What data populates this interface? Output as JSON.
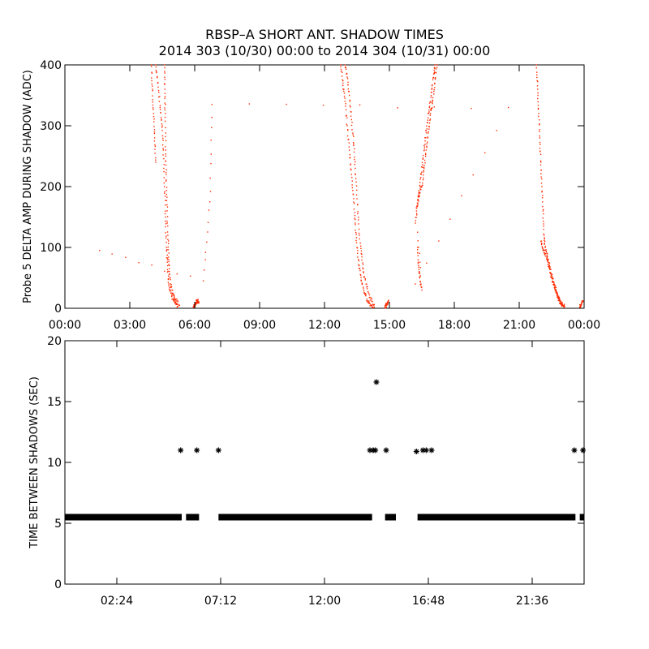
{
  "header": {
    "title_line1": "RBSP–A SHORT ANT. SHADOW TIMES",
    "title_line2": "2014 303 (10/30) 00:00 to 2014 304 (10/31) 00:00"
  },
  "chart_data": [
    {
      "type": "scatter",
      "ylabel": "Probe 5 DELTA AMP DURING SHADOW (ADC)",
      "xlabel": "",
      "x_unit": "hours",
      "xlim": [
        0,
        24
      ],
      "ylim": [
        0,
        400
      ],
      "x_ticks": [
        0,
        3,
        6,
        9,
        12,
        15,
        18,
        21,
        24
      ],
      "x_tick_labels": [
        "00:00",
        "03:00",
        "06:00",
        "09:00",
        "12:00",
        "15:00",
        "18:00",
        "21:00",
        "00:00"
      ],
      "y_ticks": [
        0,
        100,
        200,
        300,
        400
      ],
      "y_tick_labels": [
        "0",
        "100",
        "200",
        "300",
        "400"
      ],
      "color": "#ff2a00",
      "grid": false,
      "series": [
        {
          "points": [
            [
              4.2,
              400
            ],
            [
              4.3,
              370
            ],
            [
              4.4,
              330
            ],
            [
              4.5,
              300
            ],
            [
              4.55,
              260
            ],
            [
              4.6,
              200
            ],
            [
              4.65,
              150
            ],
            [
              4.7,
              100
            ],
            [
              4.75,
              70
            ],
            [
              4.8,
              40
            ],
            [
              4.9,
              25
            ],
            [
              5.0,
              15
            ],
            [
              5.1,
              8
            ],
            [
              5.2,
              3
            ]
          ]
        },
        {
          "points": [
            [
              4.6,
              400
            ],
            [
              4.62,
              360
            ],
            [
              4.64,
              320
            ],
            [
              4.66,
              260
            ],
            [
              4.68,
              220
            ],
            [
              4.72,
              170
            ],
            [
              4.76,
              120
            ],
            [
              4.8,
              80
            ],
            [
              4.85,
              50
            ],
            [
              4.95,
              30
            ],
            [
              5.05,
              20
            ],
            [
              5.15,
              12
            ],
            [
              5.3,
              5
            ]
          ]
        },
        {
          "points": [
            [
              4.0,
              400
            ],
            [
              4.05,
              360
            ],
            [
              4.1,
              320
            ],
            [
              4.15,
              280
            ],
            [
              4.2,
              240
            ]
          ]
        },
        {
          "points": [
            [
              5.95,
              2
            ],
            [
              6.0,
              5
            ],
            [
              6.05,
              8
            ],
            [
              6.1,
              11
            ],
            [
              6.15,
              12
            ],
            [
              6.2,
              10
            ]
          ]
        },
        {
          "points": [
            [
              1.6,
              95
            ],
            [
              6.4,
              45
            ],
            [
              6.7,
              175
            ],
            [
              6.8,
              335
            ],
            [
              20.5,
              330
            ],
            [
              16.2,
              40
            ]
          ]
        },
        {
          "points": [
            [
              12.75,
              400
            ],
            [
              12.85,
              370
            ],
            [
              12.95,
              340
            ],
            [
              13.05,
              300
            ],
            [
              13.15,
              260
            ],
            [
              13.25,
              220
            ],
            [
              13.35,
              180
            ],
            [
              13.42,
              140
            ],
            [
              13.5,
              100
            ],
            [
              13.6,
              70
            ],
            [
              13.7,
              45
            ],
            [
              13.85,
              25
            ],
            [
              14.0,
              12
            ],
            [
              14.15,
              5
            ],
            [
              14.3,
              2
            ]
          ]
        },
        {
          "points": [
            [
              12.95,
              400
            ],
            [
              13.05,
              380
            ],
            [
              13.15,
              350
            ],
            [
              13.25,
              310
            ],
            [
              13.35,
              270
            ],
            [
              13.42,
              230
            ],
            [
              13.5,
              180
            ],
            [
              13.6,
              130
            ],
            [
              13.7,
              90
            ],
            [
              13.8,
              60
            ],
            [
              13.95,
              35
            ],
            [
              14.1,
              18
            ],
            [
              14.3,
              6
            ]
          ]
        },
        {
          "points": [
            [
              14.8,
              2
            ],
            [
              14.85,
              5
            ],
            [
              14.9,
              8
            ],
            [
              14.95,
              12
            ]
          ]
        },
        {
          "points": [
            [
              16.2,
              140
            ],
            [
              16.3,
              170
            ],
            [
              16.4,
              190
            ],
            [
              16.5,
              200
            ],
            [
              16.6,
              230
            ],
            [
              16.7,
              260
            ],
            [
              16.8,
              290
            ],
            [
              16.9,
              320
            ],
            [
              17.0,
              340
            ],
            [
              17.1,
              370
            ],
            [
              17.2,
              400
            ]
          ]
        },
        {
          "points": [
            [
              16.25,
              160
            ],
            [
              16.35,
              185
            ],
            [
              16.45,
              215
            ],
            [
              16.55,
              245
            ],
            [
              16.65,
              275
            ],
            [
              16.75,
              305
            ],
            [
              16.85,
              330
            ],
            [
              16.95,
              355
            ],
            [
              17.05,
              385
            ],
            [
              17.1,
              400
            ]
          ]
        },
        {
          "points": [
            [
              16.3,
              100
            ],
            [
              16.35,
              70
            ],
            [
              16.4,
              50
            ],
            [
              16.5,
              30
            ],
            [
              16.3,
              125
            ]
          ]
        },
        {
          "points": [
            [
              21.8,
              400
            ],
            [
              21.85,
              360
            ],
            [
              21.9,
              320
            ],
            [
              21.95,
              280
            ],
            [
              22.0,
              240
            ],
            [
              22.05,
              200
            ],
            [
              22.1,
              160
            ],
            [
              22.15,
              120
            ],
            [
              22.2,
              100
            ],
            [
              22.3,
              85
            ],
            [
              22.4,
              70
            ],
            [
              22.5,
              55
            ],
            [
              22.6,
              42
            ],
            [
              22.7,
              30
            ],
            [
              22.8,
              20
            ],
            [
              22.9,
              12
            ],
            [
              23.0,
              6
            ],
            [
              23.1,
              3
            ]
          ]
        },
        {
          "points": [
            [
              22.0,
              110
            ],
            [
              22.1,
              95
            ],
            [
              22.2,
              90
            ],
            [
              22.3,
              78
            ],
            [
              22.4,
              65
            ],
            [
              22.5,
              50
            ],
            [
              22.6,
              38
            ],
            [
              22.7,
              26
            ],
            [
              22.8,
              18
            ],
            [
              22.9,
              9
            ],
            [
              23.0,
              4
            ]
          ]
        },
        {
          "points": [
            [
              23.8,
              2
            ],
            [
              23.85,
              5
            ],
            [
              23.9,
              9
            ],
            [
              23.95,
              12
            ]
          ]
        }
      ]
    },
    {
      "type": "scatter",
      "ylabel": "TIME BETWEEN SHADOWS (SEC)",
      "xlabel": "",
      "x_unit": "hours",
      "xlim": [
        0,
        24
      ],
      "ylim": [
        0,
        20
      ],
      "x_ticks": [
        2.4,
        7.2,
        12.0,
        16.8,
        21.6
      ],
      "x_tick_labels": [
        "02:24",
        "07:12",
        "12:00",
        "16:48",
        "21:36"
      ],
      "y_ticks": [
        0,
        5,
        10,
        15,
        20
      ],
      "y_tick_labels": [
        "0",
        "5",
        "10",
        "15",
        "20"
      ],
      "marker": "asterisk",
      "color": "#000000",
      "grid": false,
      "baseline": {
        "value": 5.5,
        "segments": [
          [
            0,
            5.4
          ],
          [
            5.6,
            6.2
          ],
          [
            7.1,
            14.2
          ],
          [
            14.8,
            15.3
          ],
          [
            16.3,
            23.6
          ],
          [
            23.8,
            24.0
          ]
        ]
      },
      "points": [
        [
          5.35,
          11.0
        ],
        [
          6.1,
          11.0
        ],
        [
          7.1,
          11.0
        ],
        [
          14.1,
          11.0
        ],
        [
          14.25,
          11.0
        ],
        [
          14.35,
          11.0
        ],
        [
          14.4,
          16.6
        ],
        [
          14.85,
          11.0
        ],
        [
          16.25,
          10.9
        ],
        [
          16.55,
          11.0
        ],
        [
          16.7,
          11.0
        ],
        [
          16.95,
          11.0
        ],
        [
          23.55,
          11.0
        ],
        [
          23.95,
          11.0
        ]
      ]
    }
  ]
}
